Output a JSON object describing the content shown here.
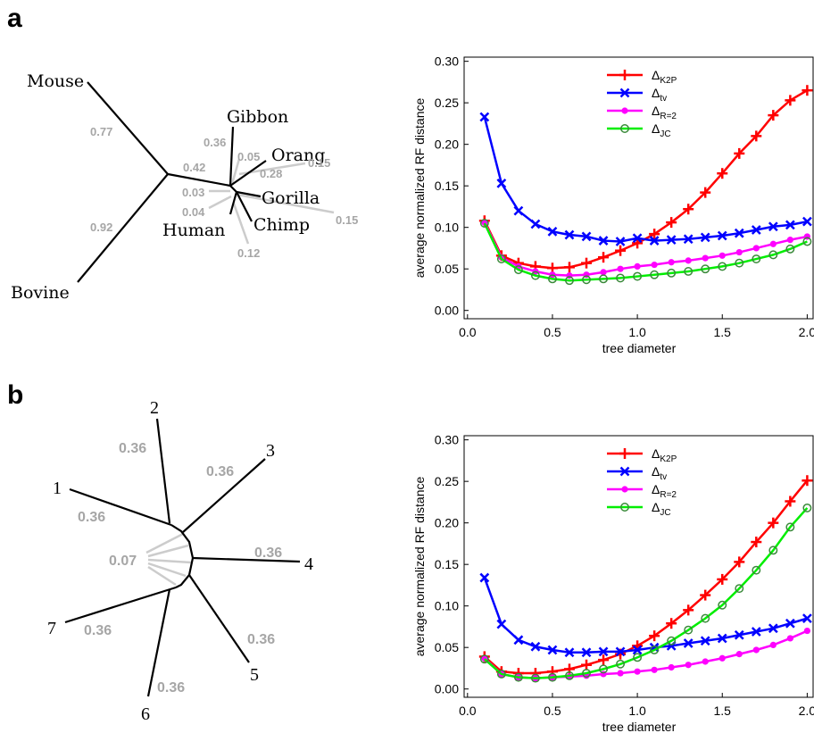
{
  "panels": [
    {
      "letter": "a"
    },
    {
      "letter": "b"
    }
  ],
  "tree_a": {
    "taxa": [
      "Mouse",
      "Bovine",
      "Gibbon",
      "Orang",
      "Gorilla",
      "Chimp",
      "Human"
    ],
    "branch_labels": [
      "0.77",
      "0.92",
      "0.42",
      "0.36",
      "0.05",
      "0.28",
      "0.03",
      "0.04",
      "0.15",
      "0.15",
      "0.12"
    ]
  },
  "tree_b": {
    "taxa": [
      "1",
      "2",
      "3",
      "4",
      "5",
      "6",
      "7"
    ],
    "branch_labels": [
      "0.36",
      "0.36",
      "0.36",
      "0.36",
      "0.36",
      "0.36",
      "0.36",
      "0.07"
    ]
  },
  "chart_data": [
    {
      "type": "line",
      "xlabel": "tree diameter",
      "ylabel": "average normalized RF distance",
      "xlim": [
        -0.02,
        2.04
      ],
      "ylim": [
        -0.01,
        0.305
      ],
      "xticks": [
        "0.0",
        "0.5",
        "1.0",
        "1.5",
        "2.0"
      ],
      "yticks": [
        "0.00",
        "0.05",
        "0.10",
        "0.15",
        "0.20",
        "0.25",
        "0.30"
      ],
      "grid": false,
      "legend": "top-center",
      "x": [
        0.1,
        0.2,
        0.3,
        0.4,
        0.5,
        0.6,
        0.7,
        0.8,
        0.9,
        1.0,
        1.1,
        1.2,
        1.3,
        1.4,
        1.5,
        1.6,
        1.7,
        1.8,
        1.9,
        2.0
      ],
      "series": [
        {
          "name_main": "Δ",
          "name_sub": "K2P",
          "color": "#ff0000",
          "marker": "plus",
          "values": [
            0.108,
            0.066,
            0.057,
            0.053,
            0.051,
            0.052,
            0.057,
            0.064,
            0.072,
            0.081,
            0.092,
            0.106,
            0.122,
            0.142,
            0.165,
            0.189,
            0.21,
            0.235,
            0.253,
            0.265
          ]
        },
        {
          "name_main": "Δ",
          "name_sub": "tv",
          "color": "#0000ff",
          "marker": "x",
          "values": [
            0.233,
            0.153,
            0.12,
            0.104,
            0.095,
            0.091,
            0.089,
            0.084,
            0.083,
            0.087,
            0.084,
            0.085,
            0.086,
            0.088,
            0.09,
            0.093,
            0.097,
            0.101,
            0.103,
            0.107
          ]
        },
        {
          "name_main": "Δ",
          "name_sub": "R=2",
          "color": "#ff00ff",
          "marker": "dot",
          "values": [
            0.106,
            0.064,
            0.053,
            0.047,
            0.043,
            0.042,
            0.043,
            0.046,
            0.05,
            0.053,
            0.055,
            0.058,
            0.06,
            0.063,
            0.066,
            0.07,
            0.075,
            0.08,
            0.085,
            0.089
          ]
        },
        {
          "name_main": "Δ",
          "name_sub": "JC",
          "color": "#00ee00",
          "marker": "circle",
          "values": [
            0.105,
            0.062,
            0.049,
            0.042,
            0.038,
            0.036,
            0.037,
            0.038,
            0.039,
            0.041,
            0.043,
            0.045,
            0.047,
            0.05,
            0.053,
            0.057,
            0.062,
            0.067,
            0.074,
            0.083
          ]
        }
      ]
    },
    {
      "type": "line",
      "xlabel": "tree diameter",
      "ylabel": "average normalized RF distance",
      "xlim": [
        -0.02,
        2.04
      ],
      "ylim": [
        -0.01,
        0.305
      ],
      "xticks": [
        "0.0",
        "0.5",
        "1.0",
        "1.5",
        "2.0"
      ],
      "yticks": [
        "0.00",
        "0.05",
        "0.10",
        "0.15",
        "0.20",
        "0.25",
        "0.30"
      ],
      "grid": false,
      "legend": "top-center",
      "x": [
        0.1,
        0.2,
        0.3,
        0.4,
        0.5,
        0.6,
        0.7,
        0.8,
        0.9,
        1.0,
        1.1,
        1.2,
        1.3,
        1.4,
        1.5,
        1.6,
        1.7,
        1.8,
        1.9,
        2.0
      ],
      "series": [
        {
          "name_main": "Δ",
          "name_sub": "K2P",
          "color": "#ff0000",
          "marker": "plus",
          "values": [
            0.039,
            0.021,
            0.019,
            0.019,
            0.021,
            0.024,
            0.029,
            0.035,
            0.042,
            0.052,
            0.064,
            0.079,
            0.095,
            0.113,
            0.132,
            0.153,
            0.177,
            0.2,
            0.226,
            0.251
          ]
        },
        {
          "name_main": "Δ",
          "name_sub": "tv",
          "color": "#0000ff",
          "marker": "x",
          "values": [
            0.134,
            0.078,
            0.059,
            0.051,
            0.047,
            0.044,
            0.044,
            0.045,
            0.045,
            0.047,
            0.05,
            0.052,
            0.055,
            0.058,
            0.061,
            0.065,
            0.069,
            0.073,
            0.079,
            0.085
          ]
        },
        {
          "name_main": "Δ",
          "name_sub": "R=2",
          "color": "#ff00ff",
          "marker": "dot",
          "values": [
            0.037,
            0.018,
            0.014,
            0.013,
            0.014,
            0.015,
            0.016,
            0.018,
            0.019,
            0.021,
            0.023,
            0.026,
            0.029,
            0.033,
            0.037,
            0.042,
            0.047,
            0.053,
            0.061,
            0.07
          ]
        },
        {
          "name_main": "Δ",
          "name_sub": "JC",
          "color": "#00ee00",
          "marker": "circle",
          "values": [
            0.036,
            0.018,
            0.014,
            0.013,
            0.014,
            0.016,
            0.019,
            0.024,
            0.03,
            0.038,
            0.047,
            0.058,
            0.071,
            0.085,
            0.101,
            0.121,
            0.143,
            0.167,
            0.195,
            0.218
          ]
        }
      ]
    }
  ]
}
